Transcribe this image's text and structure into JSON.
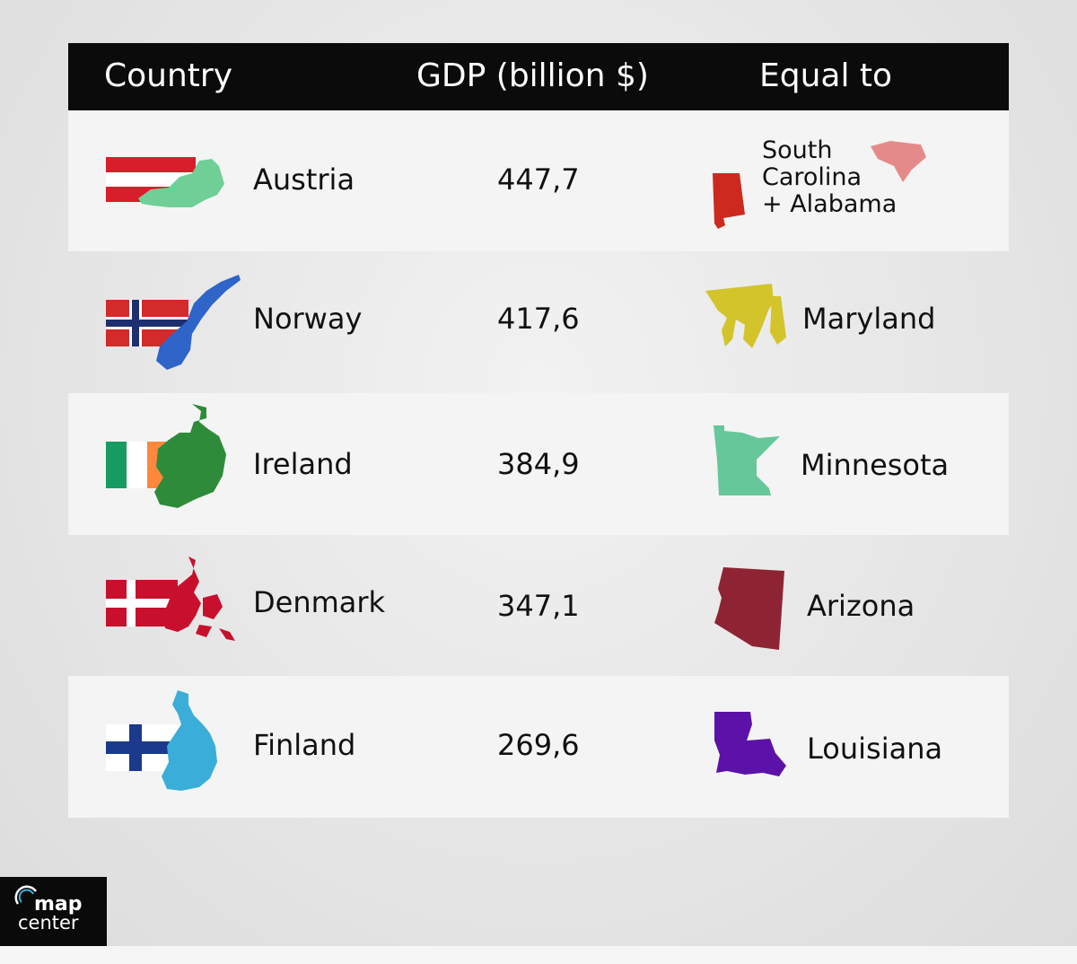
{
  "header": {
    "country": "Country",
    "gdp": "GDP (billion $)",
    "equal": "Equal to"
  },
  "rows": [
    {
      "country": "Austria",
      "gdp": "447,7",
      "equal_lines": [
        "South",
        "Carolina",
        "+ Alabama"
      ],
      "flag": "austria-flag",
      "map_color": "#6fcf97",
      "state_colors": [
        "#cc2a1f",
        "#e58a8a"
      ]
    },
    {
      "country": "Norway",
      "gdp": "417,6",
      "equal": "Maryland",
      "flag": "norway-flag",
      "map_color": "#2f64c9",
      "state_colors": [
        "#d2c42a"
      ]
    },
    {
      "country": "Ireland",
      "gdp": "384,9",
      "equal": "Minnesota",
      "flag": "ireland-flag",
      "map_color": "#2e8b3a",
      "state_colors": [
        "#66c79a"
      ]
    },
    {
      "country": "Denmark",
      "gdp": "347,1",
      "equal": "Arizona",
      "flag": "denmark-flag",
      "map_color": "#c8102e",
      "state_colors": [
        "#8e2433"
      ]
    },
    {
      "country": "Finland",
      "gdp": "269,6",
      "equal": "Louisiana",
      "flag": "finland-flag",
      "map_color": "#3aaed8",
      "state_colors": [
        "#5c12a8"
      ]
    }
  ],
  "logo": {
    "line1": "map",
    "line2": "center"
  }
}
